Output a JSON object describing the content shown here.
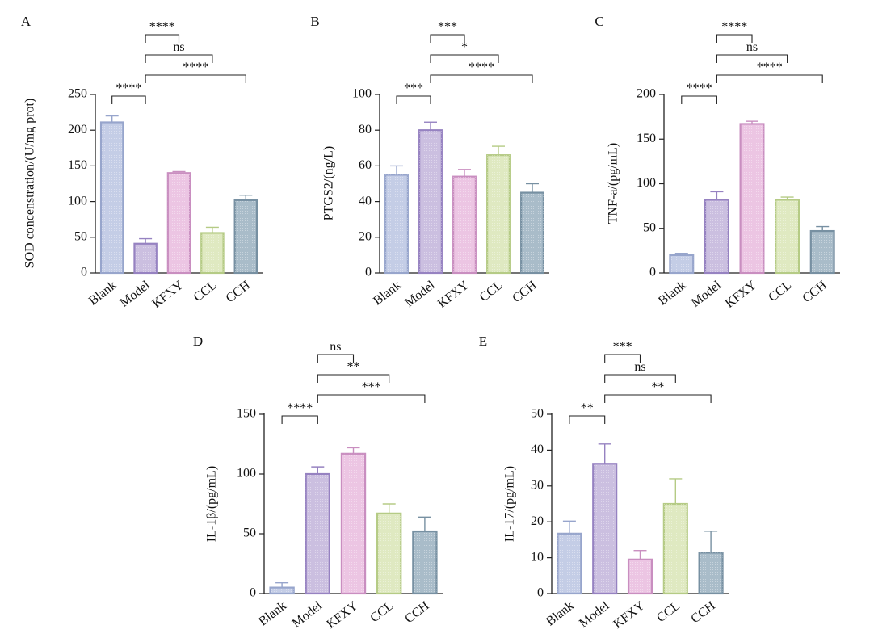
{
  "colors": {
    "Blank": {
      "fill": "#c4cde6",
      "stroke": "#97a5cc"
    },
    "Model": {
      "fill": "#cbbfe0",
      "stroke": "#9682c1"
    },
    "KFXY": {
      "fill": "#ecc5e3",
      "stroke": "#c98ec0"
    },
    "CCL": {
      "fill": "#dfe9c1",
      "stroke": "#b5cb85"
    },
    "CCH": {
      "fill": "#a9bcc9",
      "stroke": "#7790a2"
    }
  },
  "chart_data": [
    {
      "panel": "A",
      "type": "bar",
      "ylabel": "SOD concenstration/(U/mg prot)",
      "categories": [
        "Blank",
        "Model",
        "KFXY",
        "CCL",
        "CCH"
      ],
      "values": [
        211,
        41,
        140,
        56,
        102
      ],
      "errors": [
        9,
        7,
        2,
        8,
        7
      ],
      "ylim": [
        0,
        250
      ],
      "yticks": [
        0,
        50,
        100,
        150,
        200,
        250
      ],
      "brackets": [
        {
          "from": "Blank",
          "to": "Model",
          "label": "****"
        },
        {
          "from": "Model",
          "to": "KFXY",
          "label": "****"
        },
        {
          "from": "Model",
          "to": "CCL",
          "label": "ns"
        },
        {
          "from": "Model",
          "to": "CCH",
          "label": "****"
        }
      ]
    },
    {
      "panel": "B",
      "type": "bar",
      "ylabel": "PTGS2/(ng/L)",
      "categories": [
        "Blank",
        "Model",
        "KFXY",
        "CCL",
        "CCH"
      ],
      "values": [
        55,
        80,
        54,
        66,
        45
      ],
      "errors": [
        5,
        4.5,
        4,
        5,
        5
      ],
      "ylim": [
        0,
        100
      ],
      "yticks": [
        0,
        20,
        40,
        60,
        80,
        100
      ],
      "brackets": [
        {
          "from": "Blank",
          "to": "Model",
          "label": "***"
        },
        {
          "from": "Model",
          "to": "KFXY",
          "label": "***"
        },
        {
          "from": "Model",
          "to": "CCL",
          "label": "*"
        },
        {
          "from": "Model",
          "to": "CCH",
          "label": "****"
        }
      ]
    },
    {
      "panel": "C",
      "type": "bar",
      "ylabel": "TNF-a/(pg/mL)",
      "categories": [
        "Blank",
        "Model",
        "KFXY",
        "CCL",
        "CCH"
      ],
      "values": [
        20,
        82,
        167,
        82,
        47
      ],
      "errors": [
        2,
        9,
        3,
        3,
        5
      ],
      "ylim": [
        0,
        200
      ],
      "yticks": [
        0,
        50,
        100,
        150,
        200
      ],
      "brackets": [
        {
          "from": "Blank",
          "to": "Model",
          "label": "****"
        },
        {
          "from": "Model",
          "to": "KFXY",
          "label": "****"
        },
        {
          "from": "Model",
          "to": "CCL",
          "label": "ns"
        },
        {
          "from": "Model",
          "to": "CCH",
          "label": "****"
        }
      ]
    },
    {
      "panel": "D",
      "type": "bar",
      "ylabel": "IL-1β/(pg/mL)",
      "categories": [
        "Blank",
        "Model",
        "KFXY",
        "CCL",
        "CCH"
      ],
      "values": [
        5,
        100,
        117,
        67,
        52
      ],
      "errors": [
        4,
        6,
        5,
        8,
        12
      ],
      "ylim": [
        0,
        150
      ],
      "yticks": [
        0,
        50,
        100,
        150
      ],
      "brackets": [
        {
          "from": "Blank",
          "to": "Model",
          "label": "****"
        },
        {
          "from": "Model",
          "to": "KFXY",
          "label": "ns"
        },
        {
          "from": "Model",
          "to": "CCL",
          "label": "**"
        },
        {
          "from": "Model",
          "to": "CCH",
          "label": "***"
        }
      ]
    },
    {
      "panel": "E",
      "type": "bar",
      "ylabel": "IL-17/(pg/mL)",
      "categories": [
        "Blank",
        "Model",
        "KFXY",
        "CCL",
        "CCH"
      ],
      "values": [
        16.7,
        36.2,
        9.5,
        25,
        11.4
      ],
      "errors": [
        3.5,
        5.5,
        2.5,
        7,
        6
      ],
      "ylim": [
        0,
        50
      ],
      "yticks": [
        0,
        10,
        20,
        30,
        40,
        50
      ],
      "brackets": [
        {
          "from": "Blank",
          "to": "Model",
          "label": "**"
        },
        {
          "from": "Model",
          "to": "KFXY",
          "label": "***"
        },
        {
          "from": "Model",
          "to": "CCL",
          "label": "ns"
        },
        {
          "from": "Model",
          "to": "CCH",
          "label": "**"
        }
      ]
    }
  ]
}
